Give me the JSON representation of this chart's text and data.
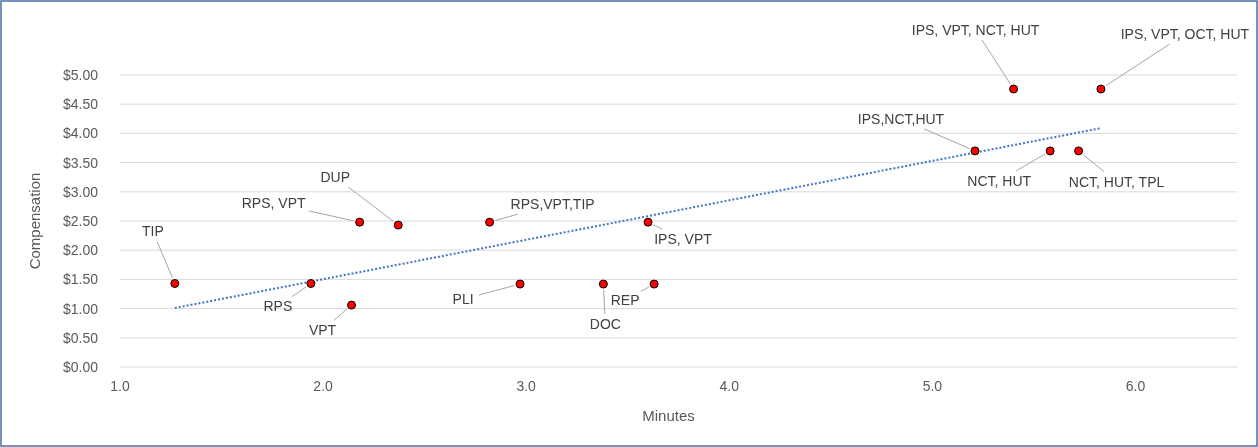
{
  "chart_data": {
    "type": "scatter",
    "xlabel": "Minutes",
    "ylabel": "Compensation",
    "xlim": [
      1,
      6.5
    ],
    "xticks": [
      {
        "value": 1,
        "label": "1.0"
      },
      {
        "value": 2,
        "label": "2.0"
      },
      {
        "value": 3,
        "label": "3.0"
      },
      {
        "value": 4,
        "label": "4.0"
      },
      {
        "value": 5,
        "label": "5.0"
      },
      {
        "value": 6,
        "label": "6.0"
      }
    ],
    "ylim": [
      0,
      5
    ],
    "yticks": [
      {
        "value": 0,
        "label": "$0.00"
      },
      {
        "value": 0.5,
        "label": "$0.50"
      },
      {
        "value": 1,
        "label": "$1.00"
      },
      {
        "value": 1.5,
        "label": "$1.50"
      },
      {
        "value": 2,
        "label": "$2.00"
      },
      {
        "value": 2.5,
        "label": "$2.50"
      },
      {
        "value": 3,
        "label": "$3.00"
      },
      {
        "value": 3.5,
        "label": "$3.50"
      },
      {
        "value": 4,
        "label": "$4.00"
      },
      {
        "value": 4.5,
        "label": "$4.50"
      },
      {
        "value": 5,
        "label": "$5.00"
      }
    ],
    "grid": "y",
    "series": [
      {
        "type": "scatter",
        "color": "#ff0000",
        "marker": "circle",
        "x": [
          1.27,
          1.94,
          2.18,
          2.37,
          2.14,
          2.82,
          2.97,
          3.38,
          3.63,
          3.6,
          5.21,
          5.4,
          5.58,
          5.72,
          5.83
        ],
        "values": [
          1.43,
          1.43,
          2.48,
          2.43,
          1.06,
          2.48,
          1.42,
          1.42,
          1.42,
          2.48,
          3.7,
          4.76,
          3.7,
          3.7,
          4.76
        ]
      },
      {
        "type": "line",
        "color": "#4472c4",
        "line_style": "dotted",
        "x": [
          1.27,
          5.83
        ],
        "values": [
          1.01,
          4.09
        ]
      }
    ],
    "annotations": [
      {
        "text": "TIP",
        "x": 1.27,
        "y": 1.43
      },
      {
        "text": "RPS",
        "x": 1.94,
        "y": 1.43
      },
      {
        "text": "RPS, VPT",
        "x": 2.18,
        "y": 2.48
      },
      {
        "text": "DUP",
        "x": 2.37,
        "y": 2.43
      },
      {
        "text": "VPT",
        "x": 2.14,
        "y": 1.06
      },
      {
        "text": "RPS,VPT,TIP",
        "x": 2.82,
        "y": 2.48
      },
      {
        "text": "PLI",
        "x": 2.97,
        "y": 1.42
      },
      {
        "text": "DOC",
        "x": 3.38,
        "y": 1.42
      },
      {
        "text": "REP",
        "x": 3.63,
        "y": 1.42
      },
      {
        "text": "IPS, VPT",
        "x": 3.6,
        "y": 2.48
      },
      {
        "text": "IPS,NCT,HUT",
        "x": 5.21,
        "y": 3.7
      },
      {
        "text": "IPS, VPT, NCT, HUT",
        "x": 5.4,
        "y": 4.76
      },
      {
        "text": "NCT, HUT",
        "x": 5.58,
        "y": 3.7
      },
      {
        "text": "NCT, HUT, TPL",
        "x": 5.72,
        "y": 3.7
      },
      {
        "text": "IPS, VPT, OCT, HUT",
        "x": 5.83,
        "y": 4.76
      }
    ]
  }
}
